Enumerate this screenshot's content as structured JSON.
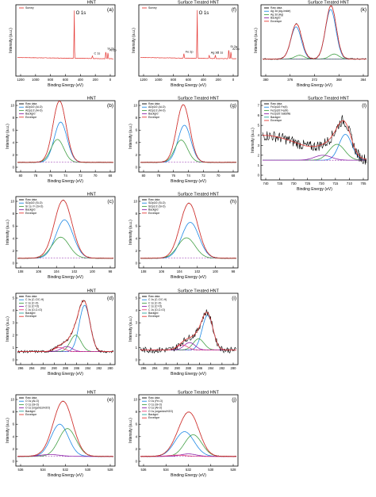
{
  "figure": {
    "panels": [
      {
        "id": "a",
        "label": "(a)",
        "tag": "HNT",
        "type": "line",
        "xlabel": "Binding Energy (eV)",
        "ylabel": "Intensity (a.u.)",
        "xticks": [
          "1200",
          "1000",
          "800",
          "600",
          "400",
          "200",
          "0"
        ],
        "legend": [
          {
            "name": "Survey",
            "color": "#e53935"
          }
        ],
        "annotations": [
          "O 1s",
          "Si 2p",
          "C 1s",
          "Al 2p"
        ]
      },
      {
        "id": "f",
        "label": "(f)",
        "tag": "Surface Treated HNT",
        "type": "line",
        "xlabel": "Binding Energy (eV)",
        "ylabel": "Intensity (a.u.)",
        "xticks": [
          "1200",
          "1000",
          "800",
          "600",
          "400",
          "200",
          "0"
        ],
        "legend": [
          {
            "name": "Survey",
            "color": "#e53935"
          }
        ],
        "annotations": [
          "O 1s",
          "Fe 2p",
          "Ag 3d",
          "C 1s",
          "Si 2p",
          "Al 2p"
        ]
      },
      {
        "id": "k",
        "label": "(k)",
        "tag": "Surface Treated HNT",
        "type": "line",
        "xlabel": "Binding Energy (eV)",
        "ylabel": "Intensity (a.u.)",
        "xticks": [
          "380",
          "376",
          "372",
          "368",
          "364"
        ],
        "legend": [
          {
            "name": "Raw data",
            "color": "#000000"
          },
          {
            "name": "Ag 3d (Ag-imide)",
            "color": "#1e88e5"
          },
          {
            "name": "Ag 3d (Ag)",
            "color": "#43a047"
          },
          {
            "name": "Backgrd",
            "color": "#8e24aa"
          },
          {
            "name": "Envelope",
            "color": "#e53935"
          }
        ]
      },
      {
        "id": "b",
        "label": "(b)",
        "tag": "HNT",
        "type": "line",
        "xlabel": "Binding Energy (eV)",
        "ylabel": "Intensity (a.u.)",
        "xticks": [
          "80",
          "78",
          "76",
          "74",
          "72",
          "70",
          "68"
        ],
        "yticks": [
          "0",
          "2",
          "4",
          "6",
          "8",
          "10"
        ],
        "legend": [
          {
            "name": "Raw data",
            "color": "#000000"
          },
          {
            "name": "Al2p3/2 (Al-O)",
            "color": "#1e88e5"
          },
          {
            "name": "Al2p1/2 (Al-O)",
            "color": "#43a047"
          },
          {
            "name": "Backgrd",
            "color": "#8e24aa"
          },
          {
            "name": "Envelope",
            "color": "#e53935"
          }
        ]
      },
      {
        "id": "g",
        "label": "(g)",
        "tag": "Surface Treated HNT",
        "type": "line",
        "xlabel": "Binding Energy (eV)",
        "ylabel": "Intensity (a.u.)",
        "xticks": [
          "80",
          "78",
          "76",
          "74",
          "72",
          "70",
          "68"
        ],
        "yticks": [
          "0",
          "2",
          "4",
          "6",
          "8",
          "10"
        ],
        "legend": [
          {
            "name": "Raw data",
            "color": "#000000"
          },
          {
            "name": "Al2p3/2 (Al-O)",
            "color": "#1e88e5"
          },
          {
            "name": "Al2p1/2 (Al-O)",
            "color": "#43a047"
          },
          {
            "name": "Backgrd",
            "color": "#8e24aa"
          },
          {
            "name": "Envelope",
            "color": "#e53935"
          }
        ]
      },
      {
        "id": "l",
        "label": "(l)",
        "tag": "Surface Treated HNT",
        "type": "line",
        "xlabel": "Binding Energy (eV)",
        "ylabel": "Intensity (a.u.)",
        "xticks": [
          "740",
          "735",
          "730",
          "725",
          "720",
          "715",
          "710",
          "705"
        ],
        "yticks": [
          "0",
          "1",
          "2",
          "3",
          "4",
          "5",
          "6",
          "7"
        ],
        "legend": [
          {
            "name": "Raw data",
            "color": "#000000"
          },
          {
            "name": "Fe2p3/2 Fe(II)",
            "color": "#1e88e5"
          },
          {
            "name": "Fe2p3/2 Fe(III)",
            "color": "#43a047"
          },
          {
            "name": "Fe2p3/2 Satellite",
            "color": "#8e24aa"
          },
          {
            "name": "Backgrd",
            "color": "#26a69a"
          },
          {
            "name": "Envelope",
            "color": "#e53935"
          }
        ]
      },
      {
        "id": "c",
        "label": "(c)",
        "tag": "HNT",
        "type": "line",
        "xlabel": "Binding Energy (eV)",
        "ylabel": "Intensity (a.u.)",
        "xticks": [
          "108",
          "106",
          "104",
          "102",
          "100",
          "98"
        ],
        "yticks": [
          "0",
          "2",
          "4",
          "6",
          "8",
          "10"
        ],
        "legend": [
          {
            "name": "Raw data",
            "color": "#000000"
          },
          {
            "name": "Si2p3/2 (Si-O)",
            "color": "#1e88e5"
          },
          {
            "name": "Si 1s / F (Si-O)",
            "color": "#43a047"
          },
          {
            "name": "Backgrd",
            "color": "#8e24aa"
          },
          {
            "name": "Envelope",
            "color": "#e53935"
          }
        ]
      },
      {
        "id": "h",
        "label": "(h)",
        "tag": "Surface Treated HNT",
        "type": "line",
        "xlabel": "Binding Energy (eV)",
        "ylabel": "Intensity (a.u.)",
        "xticks": [
          "108",
          "106",
          "104",
          "102",
          "100",
          "98"
        ],
        "yticks": [
          "0",
          "2",
          "4",
          "6",
          "8",
          "10"
        ],
        "legend": [
          {
            "name": "Raw data",
            "color": "#000000"
          },
          {
            "name": "Si2p3/2 (Si-O)",
            "color": "#1e88e5"
          },
          {
            "name": "Si2p1/2 (Si-O)",
            "color": "#43a047"
          },
          {
            "name": "Backgrd",
            "color": "#8e24aa"
          },
          {
            "name": "Envelope",
            "color": "#e53935"
          }
        ]
      },
      {
        "id": "d",
        "label": "(d)",
        "tag": "HNT",
        "type": "line",
        "xlabel": "Binding Energy (eV)",
        "ylabel": "Intensity (a.u.)",
        "xticks": [
          "296",
          "294",
          "292",
          "290",
          "288",
          "286",
          "284",
          "282",
          "280"
        ],
        "yticks": [
          "0",
          "1",
          "2",
          "3",
          "4",
          "5"
        ],
        "legend": [
          {
            "name": "Raw data",
            "color": "#000000"
          },
          {
            "name": "C 1s (C-C/C-H)",
            "color": "#1e88e5"
          },
          {
            "name": "C 1s (C-O)",
            "color": "#43a047"
          },
          {
            "name": "C 1s (C=O)",
            "color": "#8e24aa"
          },
          {
            "name": "C 1s (O-C=O)",
            "color": "#ec407a"
          },
          {
            "name": "Backgrd",
            "color": "#26a69a"
          },
          {
            "name": "Envelope",
            "color": "#e53935"
          }
        ]
      },
      {
        "id": "i",
        "label": "(i)",
        "tag": "Surface Treated HNT",
        "type": "line",
        "xlabel": "Binding Energy (eV)",
        "ylabel": "Intensity (a.u.)",
        "xticks": [
          "296",
          "294",
          "292",
          "290",
          "288",
          "286",
          "284",
          "282",
          "280"
        ],
        "yticks": [
          "0",
          "1",
          "2",
          "3",
          "4",
          "5"
        ],
        "legend": [
          {
            "name": "Raw data",
            "color": "#000000"
          },
          {
            "name": "C 1s (C-C/C-H)",
            "color": "#1e88e5"
          },
          {
            "name": "C 1s (C-O)",
            "color": "#43a047"
          },
          {
            "name": "C 1s (C=O)",
            "color": "#8e24aa"
          },
          {
            "name": "C 1s (O-C=O)",
            "color": "#ec407a"
          },
          {
            "name": "Backgrd",
            "color": "#26a69a"
          },
          {
            "name": "Envelope",
            "color": "#e53935"
          }
        ]
      },
      {
        "id": "e",
        "label": "(e)",
        "tag": "HNT",
        "type": "line",
        "xlabel": "Binding Energy (eV)",
        "ylabel": "Intensity (a.u.)",
        "xticks": [
          "536",
          "534",
          "532",
          "530",
          "528"
        ],
        "yticks": [
          "0",
          "2",
          "4",
          "6",
          "8",
          "10"
        ],
        "legend": [
          {
            "name": "Raw data",
            "color": "#000000"
          },
          {
            "name": "O 1s (Al-O)",
            "color": "#1e88e5"
          },
          {
            "name": "O 1s (Si-O)",
            "color": "#43a047"
          },
          {
            "name": "O 1s (organics/H2O)",
            "color": "#8e24aa"
          },
          {
            "name": "Backgrd",
            "color": "#26a69a"
          },
          {
            "name": "Envelope",
            "color": "#e53935"
          }
        ]
      },
      {
        "id": "j",
        "label": "(j)",
        "tag": "Surface Treated HNT",
        "type": "line",
        "xlabel": "Binding Energy (eV)",
        "ylabel": "Intensity (a.u.)",
        "xticks": [
          "536",
          "534",
          "532",
          "530",
          "528"
        ],
        "yticks": [
          "0",
          "2",
          "4",
          "6",
          "8",
          "10"
        ],
        "legend": [
          {
            "name": "Raw data",
            "color": "#000000"
          },
          {
            "name": "O 1s (Fe-O)",
            "color": "#1e88e5"
          },
          {
            "name": "O 1s (Si-O)",
            "color": "#43a047"
          },
          {
            "name": "O 1s (Al-O)",
            "color": "#8e24aa"
          },
          {
            "name": "O 1s (organics/H2O)",
            "color": "#ec407a"
          },
          {
            "name": "Backgrd",
            "color": "#26a69a"
          },
          {
            "name": "Envelope",
            "color": "#e53935"
          }
        ]
      }
    ]
  },
  "chart_data": [
    {
      "panel": "a",
      "type": "line",
      "x_range": [
        1300,
        0
      ],
      "peaks": [
        {
          "label": "O 1s",
          "center": 531,
          "height": 10
        },
        {
          "label": "C 1s",
          "center": 285,
          "height": 0.6
        },
        {
          "label": "Si 2p",
          "center": 103,
          "height": 1.5
        },
        {
          "label": "Al 2p",
          "center": 74,
          "height": 1.2
        }
      ]
    },
    {
      "panel": "f",
      "type": "line",
      "x_range": [
        1300,
        0
      ],
      "peaks": [
        {
          "label": "O 1s",
          "center": 531,
          "height": 10
        },
        {
          "label": "Fe 2p",
          "center": 711,
          "height": 0.9
        },
        {
          "label": "Ag 3d",
          "center": 368,
          "height": 0.7
        },
        {
          "label": "C 1s",
          "center": 285,
          "height": 0.7
        },
        {
          "label": "Si 2p",
          "center": 103,
          "height": 1.9
        },
        {
          "label": "Al 2p",
          "center": 74,
          "height": 1.4
        }
      ]
    },
    {
      "panel": "k",
      "type": "line",
      "x_range": [
        380,
        362
      ],
      "components": [
        {
          "name": "Ag 3d (Ag-imide)",
          "center": 374.2,
          "height": 2.6,
          "width": 0.9
        },
        {
          "name": "Ag 3d (Ag-imide)",
          "center": 368.2,
          "height": 4.0,
          "width": 0.9
        },
        {
          "name": "Ag 3d (Ag)",
          "center": 373.6,
          "height": 0.3,
          "width": 0.8
        },
        {
          "name": "Ag 3d (Ag)",
          "center": 367.6,
          "height": 0.4,
          "width": 0.8
        }
      ]
    },
    {
      "panel": "b",
      "type": "line",
      "x_range": [
        80,
        68
      ],
      "ylim": [
        0,
        10
      ],
      "components": [
        {
          "name": "Al2p3/2 (Al-O)",
          "center": 74.6,
          "height": 6.5,
          "width": 0.8
        },
        {
          "name": "Al2p1/2 (Al-O)",
          "center": 75.0,
          "height": 3.7,
          "width": 0.8
        }
      ]
    },
    {
      "panel": "g",
      "type": "line",
      "x_range": [
        80,
        68
      ],
      "ylim": [
        0,
        10
      ],
      "components": [
        {
          "name": "Al2p3/2 (Al-O)",
          "center": 74.5,
          "height": 6.0,
          "width": 0.8
        },
        {
          "name": "Al2p1/2 (Al-O)",
          "center": 74.9,
          "height": 3.6,
          "width": 0.8
        }
      ]
    },
    {
      "panel": "l",
      "type": "line",
      "x_range": [
        740,
        703
      ],
      "ylim": [
        0,
        7
      ],
      "components": [
        {
          "name": "Fe2p3/2 Fe(II)",
          "center": 710.5,
          "height": 2.6,
          "width": 2.3
        },
        {
          "name": "Fe2p3/2 Fe(III)",
          "center": 713.5,
          "height": 1.6,
          "width": 2.8
        },
        {
          "name": "Fe2p3/2 Satellite",
          "center": 718.5,
          "height": 0.5,
          "width": 3.0
        }
      ]
    },
    {
      "panel": "c",
      "type": "line",
      "x_range": [
        108,
        98
      ],
      "ylim": [
        0,
        10
      ],
      "components": [
        {
          "name": "Si2p3/2 (Si-O)",
          "center": 103.1,
          "height": 6.2,
          "width": 0.9
        },
        {
          "name": "Si 1s / F (Si-O)",
          "center": 103.5,
          "height": 3.4,
          "width": 0.9
        }
      ]
    },
    {
      "panel": "h",
      "type": "line",
      "x_range": [
        108,
        98
      ],
      "ylim": [
        0,
        10
      ],
      "components": [
        {
          "name": "Si2p3/2 (Si-O)",
          "center": 102.8,
          "height": 5.8,
          "width": 0.9
        },
        {
          "name": "Si2p1/2 (Si-O)",
          "center": 103.2,
          "height": 3.3,
          "width": 0.9
        }
      ]
    },
    {
      "panel": "d",
      "type": "line",
      "x_range": [
        296,
        280
      ],
      "ylim": [
        0,
        6
      ],
      "components": [
        {
          "name": "C 1s (C-C/C-H)",
          "center": 284.8,
          "height": 4.5,
          "width": 0.9
        },
        {
          "name": "C 1s (C-O)",
          "center": 286.3,
          "height": 1.6,
          "width": 0.9
        },
        {
          "name": "C 1s (C=O)",
          "center": 287.8,
          "height": 0.5,
          "width": 0.9
        },
        {
          "name": "C 1s (O-C=O)",
          "center": 289.0,
          "height": 0.4,
          "width": 0.9
        }
      ]
    },
    {
      "panel": "i",
      "type": "line",
      "x_range": [
        296,
        280
      ],
      "ylim": [
        0,
        5
      ],
      "components": [
        {
          "name": "C 1s (C-C/C-H)",
          "center": 284.8,
          "height": 2.8,
          "width": 0.9
        },
        {
          "name": "C 1s (C-O)",
          "center": 286.3,
          "height": 0.9,
          "width": 0.9
        },
        {
          "name": "C 1s (C=O)",
          "center": 287.8,
          "height": 0.6,
          "width": 0.9
        },
        {
          "name": "C 1s (O-C=O)",
          "center": 289.0,
          "height": 0.4,
          "width": 0.9
        }
      ]
    },
    {
      "panel": "e",
      "type": "line",
      "x_range": [
        537,
        527
      ],
      "ylim": [
        0,
        10
      ],
      "components": [
        {
          "name": "O 1s (Al-O)",
          "center": 532.6,
          "height": 5.2,
          "width": 0.9
        },
        {
          "name": "O 1s (Si-O)",
          "center": 531.8,
          "height": 4.5,
          "width": 0.9
        },
        {
          "name": "O 1s (organics/H2O)",
          "center": 533.6,
          "height": 0.3,
          "width": 1.0
        }
      ]
    },
    {
      "panel": "j",
      "type": "line",
      "x_range": [
        537,
        527
      ],
      "ylim": [
        0,
        10
      ],
      "components": [
        {
          "name": "O 1s (Fe-O)",
          "center": 532.4,
          "height": 4.0,
          "width": 1.0
        },
        {
          "name": "O 1s (Si-O)",
          "center": 531.5,
          "height": 3.5,
          "width": 0.9
        },
        {
          "name": "O 1s (Al-O)",
          "center": 532.0,
          "height": 0.4,
          "width": 0.8
        },
        {
          "name": "O 1s (organics/H2O)",
          "center": 533.2,
          "height": 0.2,
          "width": 0.9
        }
      ]
    }
  ]
}
